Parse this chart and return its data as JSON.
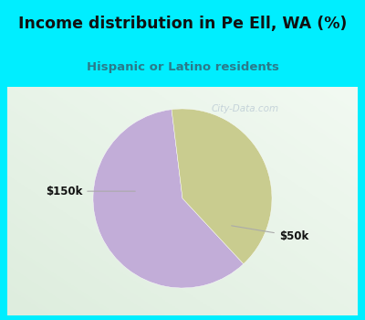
{
  "title": "Income distribution in Pe Ell, WA (%)",
  "subtitle": "Hispanic or Latino residents",
  "slices": [
    60,
    40
  ],
  "labels": [
    "$50k",
    "$150k"
  ],
  "colors": [
    "#c2add8",
    "#c9cc8f"
  ],
  "bg_cyan": "#00eeff",
  "chart_bg_color": "#e8f5ee",
  "title_color": "#111111",
  "subtitle_color": "#2a7a8a",
  "watermark": "City-Data.com",
  "start_angle": 97,
  "label_color": "#111111",
  "line_color": "#aaaaaa"
}
